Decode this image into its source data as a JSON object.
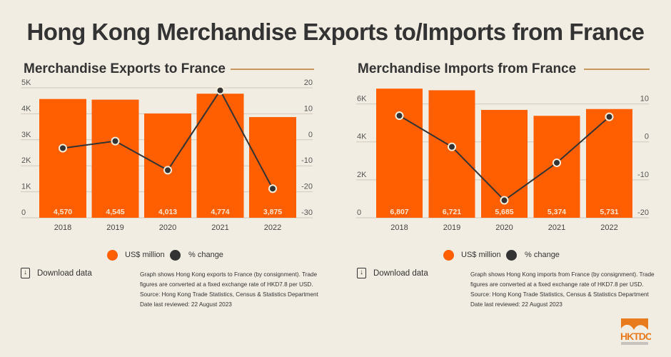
{
  "title": "Hong Kong Merchandise Exports to/Imports from France",
  "colors": {
    "bar": "#ff5f00",
    "line": "#333333",
    "background": "#f2ede3",
    "accent": "#c8965a"
  },
  "chart_data": [
    {
      "type": "bar+line",
      "title": "Merchandise Exports to France",
      "categories": [
        "2018",
        "2019",
        "2020",
        "2021",
        "2022"
      ],
      "series": [
        {
          "name": "US$ million",
          "type": "bar",
          "axis": "left",
          "values": [
            4570,
            4545,
            4013,
            4774,
            3875
          ],
          "labels": [
            "4,570",
            "4,545",
            "4,013",
            "4,774",
            "3,875"
          ]
        },
        {
          "name": "% change",
          "type": "line",
          "axis": "right",
          "values": [
            -3.2,
            -0.5,
            -11.7,
            19.0,
            -18.8
          ]
        }
      ],
      "left_axis": {
        "range": [
          0,
          5000
        ],
        "ticks": [
          0,
          1000,
          2000,
          3000,
          4000,
          5000
        ],
        "tick_labels": [
          "0",
          "1K",
          "2K",
          "3K",
          "4K",
          "5K"
        ]
      },
      "right_axis": {
        "range": [
          -30,
          20
        ],
        "ticks": [
          -30,
          -20,
          -10,
          0,
          10,
          20
        ],
        "tick_labels": [
          "-30",
          "-20",
          "-10",
          "0",
          "10",
          "20"
        ]
      },
      "grid": true,
      "legend": "bottom"
    },
    {
      "type": "bar+line",
      "title": "Merchandise Imports from France",
      "categories": [
        "2018",
        "2019",
        "2020",
        "2021",
        "2022"
      ],
      "series": [
        {
          "name": "US$ million",
          "type": "bar",
          "axis": "left",
          "values": [
            6807,
            6721,
            5685,
            5374,
            5731
          ],
          "labels": [
            "6,807",
            "6,721",
            "5,685",
            "5,374",
            "5,731"
          ]
        },
        {
          "name": "% change",
          "type": "line",
          "axis": "right",
          "values": [
            6.9,
            -1.3,
            -15.4,
            -5.5,
            6.6
          ]
        }
      ],
      "left_axis": {
        "range": [
          0,
          7000
        ],
        "ticks": [
          0,
          2000,
          4000,
          6000
        ],
        "tick_labels": [
          "0",
          "2K",
          "4K",
          "6K"
        ]
      },
      "right_axis": {
        "range": [
          -20,
          15
        ],
        "ticks": [
          -20,
          -10,
          0,
          10
        ],
        "tick_labels": [
          "-20",
          "-10",
          "0",
          "10"
        ]
      },
      "grid": true,
      "legend": "bottom"
    }
  ],
  "panels": [
    {
      "legend": {
        "bar": "US$ million",
        "line": "% change"
      },
      "download": "Download data",
      "notes": [
        "Graph shows Hong Kong exports to France (by consignment). Trade",
        "figures are converted at a fixed exchange rate of HKD7.8 per USD.",
        "Source: Hong Kong Trade Statistics, Census & Statistics Department",
        "Date last reviewed: 22 August 2023"
      ]
    },
    {
      "legend": {
        "bar": "US$ million",
        "line": "% change"
      },
      "download": "Download data",
      "notes": [
        "Graph shows Hong Kong imports from France (by consignment). Trade",
        "figures are converted at a fixed exchange rate of HKD7.8 per USD.",
        "Source: Hong Kong Trade Statistics, Census & Statistics Department",
        "Date last reviewed: 22 August 2023"
      ]
    }
  ],
  "logo": {
    "text": "HKTDC"
  }
}
